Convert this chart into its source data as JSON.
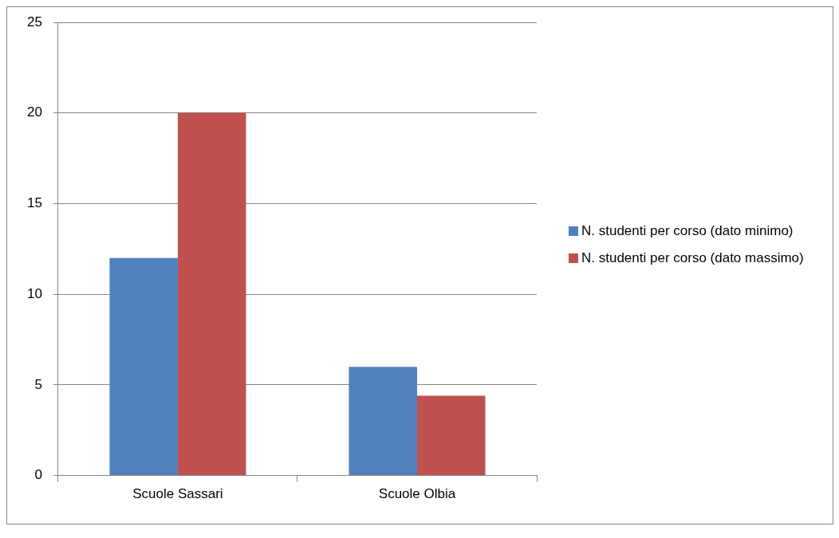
{
  "chart_data": {
    "type": "bar",
    "categories": [
      "Scuole Sassari",
      "Scuole Olbia"
    ],
    "series": [
      {
        "name": "N. studenti per corso (dato minimo)",
        "color": "#4f81bd",
        "values": [
          12,
          6
        ]
      },
      {
        "name": "N. studenti per corso (dato massimo)",
        "color": "#c0504d",
        "values": [
          20,
          4.4
        ]
      }
    ],
    "ylim": [
      0,
      25
    ],
    "yticks": [
      0,
      5,
      10,
      15,
      20,
      25
    ],
    "grid": "y",
    "legend": "right"
  }
}
